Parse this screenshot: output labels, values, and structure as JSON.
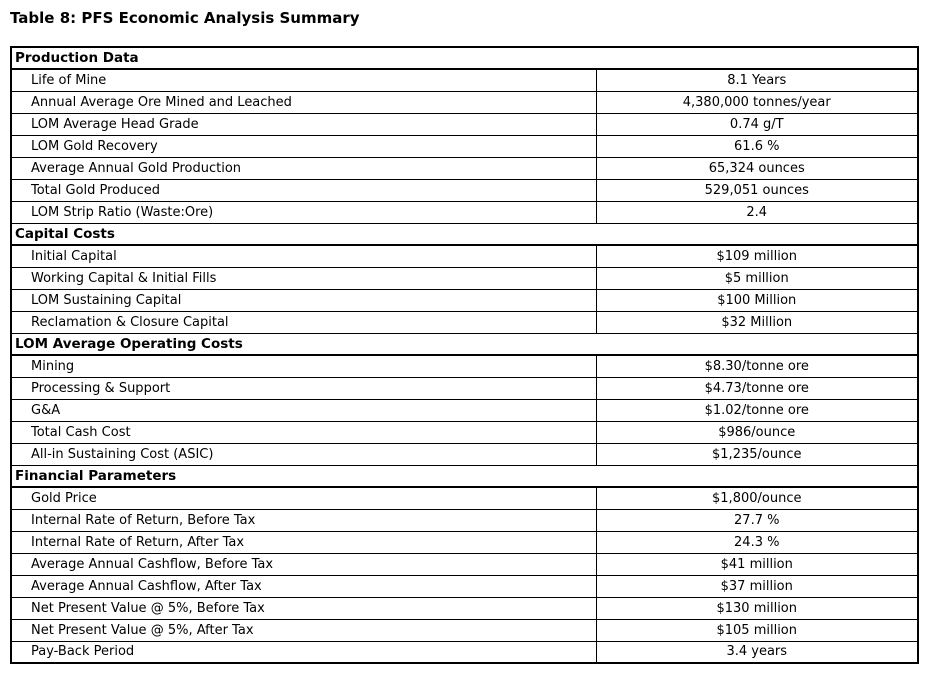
{
  "page": {
    "title": "Table 8: PFS Economic Analysis Summary",
    "background_color": "#ffffff",
    "text_color": "#000000",
    "border_color": "#000000"
  },
  "table": {
    "columns": [
      "parameter",
      "value"
    ],
    "sections": [
      {
        "header": "Production Data",
        "rows": [
          {
            "label": "Life of Mine",
            "value": "8.1 Years"
          },
          {
            "label": "Annual Average Ore Mined and Leached",
            "value": "4,380,000 tonnes/year"
          },
          {
            "label": "LOM Average Head Grade",
            "value": "0.74 g/T"
          },
          {
            "label": "LOM Gold Recovery",
            "value": "61.6 %"
          },
          {
            "label": "Average Annual Gold Production",
            "value": "65,324 ounces"
          },
          {
            "label": "Total Gold Produced",
            "value": "529,051 ounces"
          },
          {
            "label": "LOM Strip Ratio (Waste:Ore)",
            "value": "2.4"
          }
        ]
      },
      {
        "header": "Capital Costs",
        "rows": [
          {
            "label": "Initial Capital",
            "value": "$109 million"
          },
          {
            "label": "Working Capital & Initial Fills",
            "value": "$5 million"
          },
          {
            "label": "LOM Sustaining Capital",
            "value": "$100 Million"
          },
          {
            "label": "Reclamation & Closure Capital",
            "value": "$32 Million"
          }
        ]
      },
      {
        "header": "LOM Average Operating Costs",
        "rows": [
          {
            "label": "Mining",
            "value": "$8.30/tonne ore"
          },
          {
            "label": "Processing & Support",
            "value": "$4.73/tonne ore"
          },
          {
            "label": "G&A",
            "value": "$1.02/tonne ore"
          },
          {
            "label": "Total Cash Cost",
            "value": "$986/ounce"
          },
          {
            "label": "All-in Sustaining Cost (ASIC)",
            "value": "$1,235/ounce"
          }
        ]
      },
      {
        "header": "Financial Parameters",
        "rows": [
          {
            "label": "Gold Price",
            "value": "$1,800/ounce"
          },
          {
            "label": "Internal Rate of Return, Before Tax",
            "value": "27.7 %"
          },
          {
            "label": "Internal Rate of Return, After Tax",
            "value": "24.3 %"
          },
          {
            "label": "Average Annual Cashflow, Before Tax",
            "value": "$41 million"
          },
          {
            "label": "Average Annual Cashflow, After Tax",
            "value": "$37 million"
          },
          {
            "label": "Net Present Value @ 5%, Before Tax",
            "value": "$130 million"
          },
          {
            "label": "Net Present Value @ 5%, After Tax",
            "value": "$105 million"
          },
          {
            "label": "Pay-Back Period",
            "value": "3.4 years"
          }
        ]
      }
    ]
  }
}
